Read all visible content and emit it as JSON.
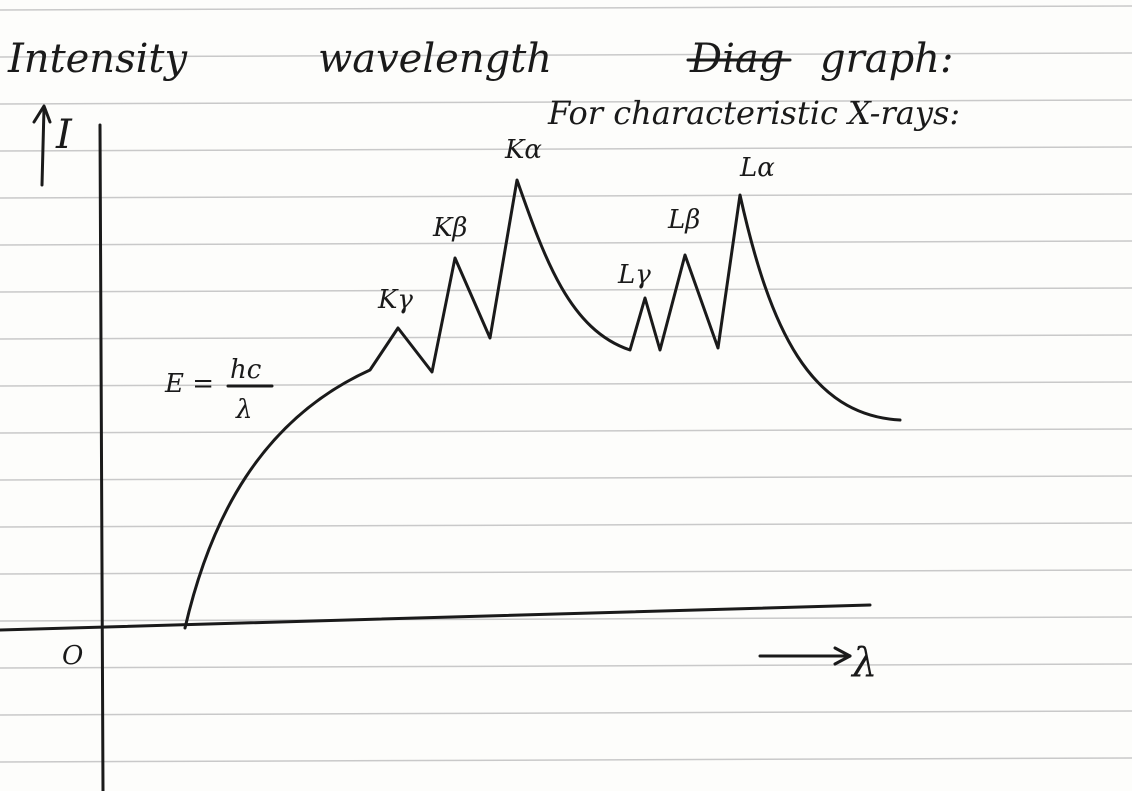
{
  "header": {
    "title_words": [
      "Intensity",
      "wavelength"
    ],
    "struck_word": "Diag",
    "title_end": "graph:",
    "subtitle": "For characteristic X-rays:"
  },
  "axes": {
    "y_label": "I",
    "x_label": "λ",
    "origin": "O"
  },
  "formula": {
    "lhs": "E =",
    "numerator": "hc",
    "denominator": "λ"
  },
  "peaks": [
    "Kγ",
    "Kβ",
    "Kα",
    "Lγ",
    "Lβ",
    "Lα"
  ]
}
